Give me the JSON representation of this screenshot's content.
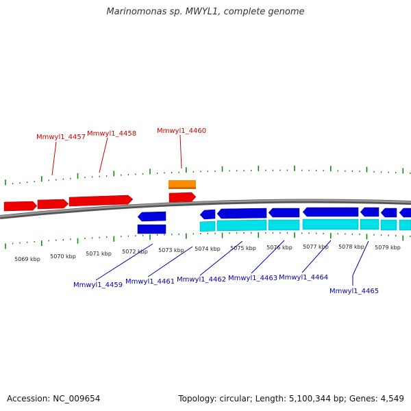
{
  "title": "Marinomonas sp. MWYL1, complete genome",
  "footer": {
    "accession": "Accession: NC_009654",
    "summary": "Topology: circular; Length: 5,100,344 bp; Genes: 4,549"
  },
  "colors": {
    "forward_gene": "#ee0000",
    "reverse_gene": "#0000dd",
    "rna": "#ff8c00",
    "cds": "#00e0e8",
    "tick": "#118811",
    "backbone": "#808080",
    "label_forward": "#cc0000",
    "label_reverse": "#0000aa"
  },
  "scale_labels": [
    "5069 kbp",
    "5070 kbp",
    "5071 kbp",
    "5072 kbp",
    "5073 kbp",
    "5074 kbp",
    "5075 kbp",
    "5076 kbp",
    "5077 kbp",
    "5078 kbp",
    "5079 kbp"
  ],
  "forward_labels": [
    "Mmwyl1_4457",
    "Mmwyl1_4458",
    "Mmwyl1_4460"
  ],
  "reverse_labels": [
    "Mmwyl1_4459",
    "Mmwyl1_4461",
    "Mmwyl1_4462",
    "Mmwyl1_4463",
    "Mmwyl1_4464",
    "Mmwyl1_4465"
  ]
}
